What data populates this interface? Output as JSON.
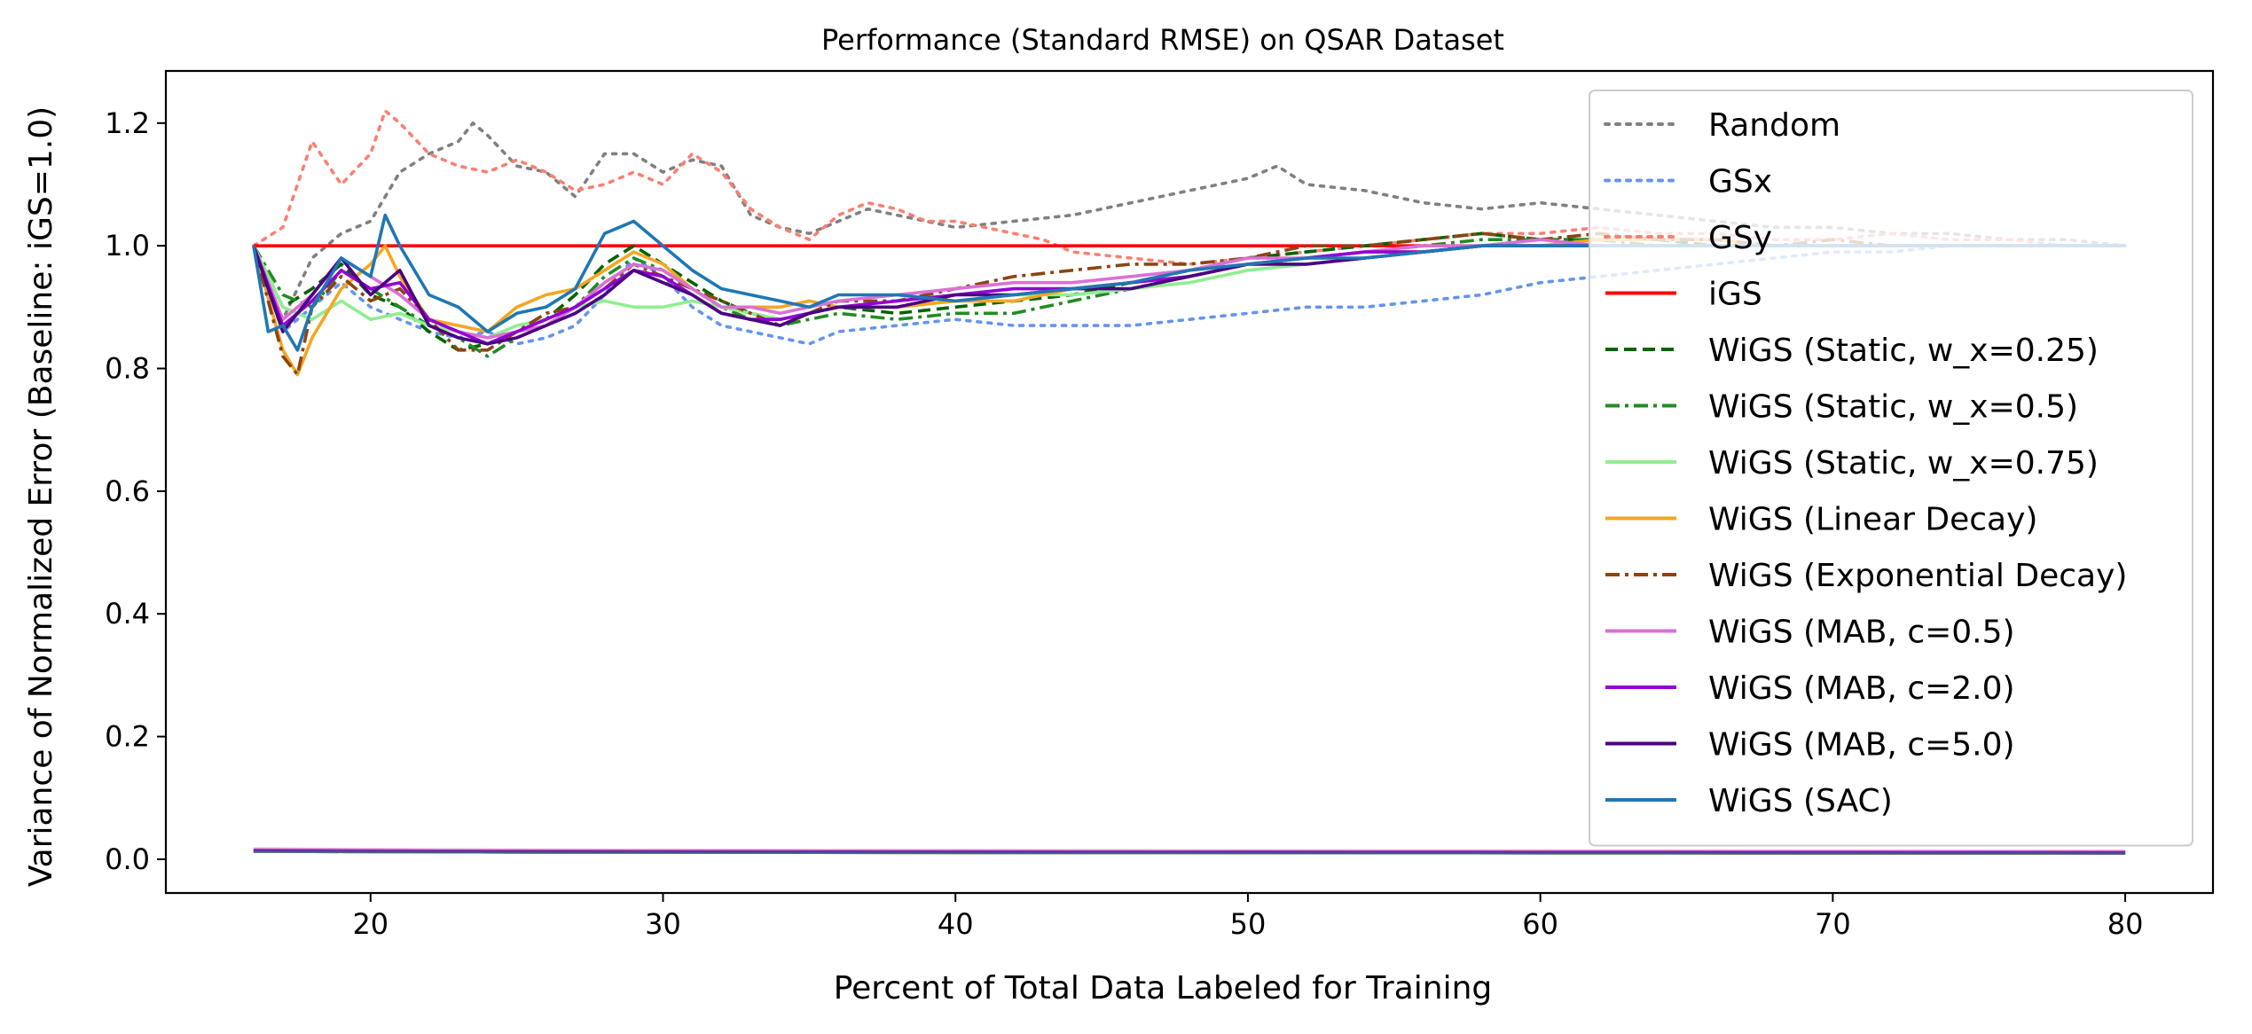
{
  "chart_data": {
    "type": "line",
    "title": "Performance (Standard RMSE) on QSAR Dataset",
    "xlabel": "Percent of Total Data Labeled for Training",
    "ylabel": "Variance of Normalized Error (Baseline: iGS=1.0)",
    "xlim": [
      13,
      83
    ],
    "ylim": [
      -0.055,
      1.285
    ],
    "xticks": [
      20,
      30,
      40,
      50,
      60,
      70,
      80
    ],
    "yticks": [
      0.0,
      0.2,
      0.4,
      0.6,
      0.8,
      1.0,
      1.2
    ],
    "xtick_labels": [
      "20",
      "30",
      "40",
      "50",
      "60",
      "70",
      "80"
    ],
    "ytick_labels": [
      "0.0",
      "0.2",
      "0.4",
      "0.6",
      "0.8",
      "1.0",
      "1.2"
    ],
    "legend_position": "upper right",
    "grid": false,
    "series": [
      {
        "name": "Random",
        "color": "#808080",
        "dash": "dotted",
        "x": [
          16,
          17,
          18,
          19,
          20,
          21,
          22,
          23,
          23.5,
          24,
          25,
          26,
          27,
          28,
          29,
          30,
          31,
          32,
          33,
          34,
          35,
          36,
          37,
          38,
          39,
          40,
          42,
          44,
          46,
          48,
          50,
          51,
          52,
          54,
          56,
          58,
          60,
          62,
          64,
          66,
          68,
          70,
          72,
          74,
          76,
          78,
          80
        ],
        "y": [
          1.0,
          0.88,
          0.98,
          1.02,
          1.04,
          1.12,
          1.15,
          1.17,
          1.2,
          1.18,
          1.13,
          1.12,
          1.08,
          1.15,
          1.15,
          1.12,
          1.14,
          1.13,
          1.05,
          1.03,
          1.02,
          1.04,
          1.06,
          1.05,
          1.04,
          1.03,
          1.04,
          1.05,
          1.07,
          1.09,
          1.11,
          1.13,
          1.1,
          1.09,
          1.07,
          1.06,
          1.07,
          1.06,
          1.05,
          1.04,
          1.03,
          1.03,
          1.02,
          1.02,
          1.01,
          1.01,
          1.0
        ],
        "variance": 0.012
      },
      {
        "name": "GSx",
        "color": "#6495ed",
        "dash": "dotted",
        "x": [
          16,
          17,
          18,
          19,
          20,
          21,
          22,
          23,
          24,
          25,
          26,
          27,
          28,
          29,
          30,
          31,
          32,
          33,
          34,
          35,
          36,
          38,
          40,
          42,
          44,
          46,
          48,
          50,
          52,
          54,
          56,
          58,
          60,
          62,
          64,
          66,
          68,
          70,
          72,
          74,
          76,
          78,
          80
        ],
        "y": [
          1.0,
          0.86,
          0.9,
          0.94,
          0.9,
          0.88,
          0.86,
          0.85,
          0.86,
          0.84,
          0.85,
          0.87,
          0.92,
          0.98,
          0.95,
          0.9,
          0.87,
          0.86,
          0.85,
          0.84,
          0.86,
          0.87,
          0.88,
          0.87,
          0.87,
          0.87,
          0.88,
          0.89,
          0.9,
          0.9,
          0.91,
          0.92,
          0.94,
          0.95,
          0.96,
          0.97,
          0.98,
          0.99,
          0.99,
          1.0,
          1.0,
          1.0,
          1.0
        ],
        "variance": 0.013
      },
      {
        "name": "GSy",
        "color": "#fa8072",
        "dash": "dotted",
        "x": [
          16,
          17,
          18,
          19,
          20,
          20.5,
          21,
          22,
          23,
          24,
          25,
          26,
          27,
          28,
          29,
          30,
          31,
          32,
          33,
          34,
          35,
          36,
          37,
          38,
          39,
          40,
          41,
          42,
          43,
          44,
          46,
          48,
          50,
          52,
          54,
          56,
          58,
          60,
          62,
          64,
          66,
          68,
          70,
          72,
          74,
          76,
          78,
          80
        ],
        "y": [
          1.0,
          1.03,
          1.17,
          1.1,
          1.15,
          1.22,
          1.2,
          1.15,
          1.13,
          1.12,
          1.14,
          1.12,
          1.09,
          1.1,
          1.12,
          1.1,
          1.15,
          1.12,
          1.06,
          1.03,
          1.01,
          1.05,
          1.07,
          1.06,
          1.04,
          1.04,
          1.03,
          1.02,
          1.01,
          0.99,
          0.98,
          0.97,
          0.98,
          0.99,
          1.0,
          1.01,
          1.02,
          1.02,
          1.03,
          1.02,
          1.02,
          1.01,
          1.01,
          1.02,
          1.01,
          1.01,
          1.0,
          1.0
        ],
        "variance": 0.014
      },
      {
        "name": "iGS",
        "color": "#ff0000",
        "dash": "solid",
        "x": [
          16,
          80
        ],
        "y": [
          1.0,
          1.0
        ],
        "variance": 0.012
      },
      {
        "name": "WiGS (Static, w_x=0.25)",
        "color": "#006400",
        "dash": "dashed",
        "x": [
          16,
          17,
          18,
          19,
          20,
          21,
          22,
          23,
          24,
          25,
          26,
          27,
          28,
          29,
          30,
          31,
          32,
          33,
          34,
          35,
          36,
          38,
          40,
          42,
          44,
          46,
          48,
          50,
          52,
          54,
          56,
          58,
          60,
          62,
          64,
          66,
          68,
          70,
          72,
          74,
          76,
          78,
          80
        ],
        "y": [
          1.0,
          0.9,
          0.93,
          0.97,
          0.92,
          0.9,
          0.86,
          0.83,
          0.84,
          0.86,
          0.88,
          0.92,
          0.97,
          1.0,
          0.97,
          0.94,
          0.91,
          0.89,
          0.88,
          0.89,
          0.9,
          0.89,
          0.9,
          0.91,
          0.92,
          0.94,
          0.96,
          0.98,
          0.99,
          1.0,
          1.01,
          1.02,
          1.01,
          1.01,
          1.01,
          1.0,
          1.0,
          1.0,
          1.0,
          1.0,
          1.0,
          1.0,
          1.0
        ],
        "variance": 0.011
      },
      {
        "name": "WiGS (Static, w_x=0.5)",
        "color": "#228b22",
        "dash": "dashdot",
        "x": [
          16,
          17,
          18,
          19,
          20,
          21,
          22,
          23,
          24,
          25,
          26,
          27,
          28,
          29,
          30,
          31,
          32,
          33,
          34,
          35,
          36,
          38,
          40,
          42,
          44,
          46,
          48,
          50,
          52,
          54,
          56,
          58,
          60,
          62,
          64,
          66,
          68,
          70,
          72,
          74,
          76,
          78,
          80
        ],
        "y": [
          1.0,
          0.92,
          0.9,
          0.96,
          0.93,
          0.9,
          0.87,
          0.85,
          0.82,
          0.85,
          0.87,
          0.9,
          0.95,
          0.98,
          0.96,
          0.93,
          0.9,
          0.88,
          0.87,
          0.88,
          0.89,
          0.88,
          0.89,
          0.89,
          0.91,
          0.93,
          0.95,
          0.97,
          0.98,
          0.99,
          1.0,
          1.01,
          1.01,
          1.01,
          1.0,
          1.0,
          1.0,
          1.0,
          1.0,
          1.0,
          1.0,
          1.0,
          1.0
        ],
        "variance": 0.011
      },
      {
        "name": "WiGS (Static, w_x=0.75)",
        "color": "#90ee90",
        "dash": "solid",
        "x": [
          16,
          17,
          18,
          19,
          20,
          21,
          22,
          23,
          24,
          25,
          26,
          27,
          28,
          29,
          30,
          31,
          32,
          33,
          34,
          35,
          36,
          38,
          40,
          42,
          44,
          46,
          48,
          50,
          52,
          54,
          56,
          58,
          60,
          62,
          64,
          66,
          68,
          70,
          72,
          74,
          76,
          78,
          80
        ],
        "y": [
          1.0,
          0.9,
          0.88,
          0.91,
          0.88,
          0.89,
          0.87,
          0.86,
          0.85,
          0.87,
          0.88,
          0.9,
          0.91,
          0.9,
          0.9,
          0.91,
          0.9,
          0.89,
          0.88,
          0.89,
          0.9,
          0.9,
          0.91,
          0.92,
          0.92,
          0.93,
          0.94,
          0.96,
          0.97,
          0.98,
          0.99,
          1.0,
          1.0,
          1.0,
          1.0,
          1.0,
          1.0,
          1.0,
          1.0,
          1.0,
          1.0,
          1.0,
          1.0
        ],
        "variance": 0.011
      },
      {
        "name": "WiGS (Linear Decay)",
        "color": "#f5a623",
        "dash": "solid",
        "x": [
          16,
          17,
          17.5,
          18,
          19,
          20,
          20.5,
          21,
          22,
          23,
          24,
          25,
          26,
          27,
          28,
          29,
          30,
          31,
          32,
          33,
          34,
          35,
          36,
          38,
          40,
          42,
          44,
          46,
          48,
          50,
          52,
          54,
          56,
          58,
          60,
          62,
          64,
          66,
          68,
          70,
          72,
          74,
          76,
          78,
          80
        ],
        "y": [
          1.0,
          0.83,
          0.79,
          0.85,
          0.93,
          0.97,
          1.0,
          0.95,
          0.88,
          0.87,
          0.86,
          0.9,
          0.92,
          0.93,
          0.96,
          0.99,
          0.97,
          0.93,
          0.9,
          0.9,
          0.9,
          0.91,
          0.9,
          0.9,
          0.91,
          0.91,
          0.93,
          0.94,
          0.95,
          0.97,
          0.98,
          0.99,
          0.99,
          1.0,
          1.0,
          1.01,
          1.01,
          1.01,
          1.0,
          1.0,
          1.0,
          1.0,
          1.0,
          1.0,
          1.0
        ],
        "variance": 0.011
      },
      {
        "name": "WiGS (Exponential Decay)",
        "color": "#8b4513",
        "dash": "dashdot",
        "x": [
          16,
          17,
          17.5,
          18,
          19,
          20,
          21,
          22,
          23,
          24,
          25,
          26,
          27,
          28,
          29,
          30,
          31,
          32,
          33,
          34,
          35,
          36,
          38,
          40,
          42,
          44,
          46,
          48,
          50,
          52,
          54,
          56,
          58,
          60,
          62,
          64,
          66,
          68,
          70,
          72,
          74,
          76,
          78,
          80
        ],
        "y": [
          1.0,
          0.82,
          0.79,
          0.9,
          0.95,
          0.91,
          0.93,
          0.88,
          0.83,
          0.83,
          0.86,
          0.89,
          0.9,
          0.93,
          0.97,
          0.95,
          0.93,
          0.91,
          0.89,
          0.87,
          0.89,
          0.91,
          0.91,
          0.93,
          0.95,
          0.96,
          0.97,
          0.97,
          0.98,
          1.0,
          1.0,
          1.01,
          1.02,
          1.01,
          1.02,
          1.01,
          1.01,
          1.0,
          1.01,
          1.0,
          1.0,
          1.0,
          1.0,
          1.0
        ],
        "variance": 0.011
      },
      {
        "name": "WiGS (MAB, c=0.5)",
        "color": "#da70d6",
        "dash": "solid",
        "x": [
          16,
          17,
          18,
          19,
          20,
          21,
          22,
          23,
          24,
          25,
          26,
          27,
          28,
          29,
          30,
          31,
          32,
          33,
          34,
          35,
          36,
          38,
          40,
          42,
          44,
          46,
          48,
          50,
          52,
          54,
          56,
          58,
          60,
          62,
          64,
          66,
          68,
          70,
          72,
          74,
          76,
          78,
          80
        ],
        "y": [
          1.0,
          0.88,
          0.92,
          0.98,
          0.95,
          0.92,
          0.88,
          0.86,
          0.85,
          0.86,
          0.87,
          0.9,
          0.94,
          0.97,
          0.96,
          0.93,
          0.9,
          0.9,
          0.89,
          0.9,
          0.91,
          0.92,
          0.93,
          0.94,
          0.94,
          0.95,
          0.96,
          0.98,
          0.98,
          0.99,
          1.0,
          1.0,
          1.01,
          1.0,
          1.0,
          1.0,
          1.0,
          1.0,
          1.0,
          1.0,
          1.0,
          1.0,
          1.0
        ],
        "variance": 0.015
      },
      {
        "name": "WiGS (MAB, c=2.0)",
        "color": "#9400d3",
        "dash": "solid",
        "x": [
          16,
          17,
          18,
          19,
          20,
          21,
          22,
          23,
          24,
          25,
          26,
          27,
          28,
          29,
          30,
          31,
          32,
          33,
          34,
          35,
          36,
          38,
          40,
          42,
          44,
          46,
          48,
          50,
          52,
          54,
          56,
          58,
          60,
          62,
          64,
          66,
          68,
          70,
          72,
          74,
          76,
          78,
          80
        ],
        "y": [
          1.0,
          0.87,
          0.91,
          0.96,
          0.93,
          0.94,
          0.88,
          0.86,
          0.84,
          0.86,
          0.88,
          0.9,
          0.93,
          0.96,
          0.95,
          0.92,
          0.89,
          0.88,
          0.88,
          0.89,
          0.9,
          0.91,
          0.92,
          0.93,
          0.93,
          0.94,
          0.95,
          0.97,
          0.98,
          0.99,
          0.99,
          1.0,
          1.0,
          1.0,
          1.0,
          1.0,
          1.0,
          1.0,
          1.0,
          1.0,
          1.0,
          1.0,
          1.0
        ],
        "variance": 0.013
      },
      {
        "name": "WiGS (MAB, c=5.0)",
        "color": "#4b0082",
        "dash": "solid",
        "x": [
          16,
          17,
          18,
          19,
          20,
          21,
          22,
          23,
          24,
          25,
          26,
          27,
          28,
          29,
          30,
          31,
          32,
          33,
          34,
          35,
          36,
          38,
          40,
          42,
          44,
          46,
          48,
          50,
          52,
          54,
          56,
          58,
          60,
          62,
          64,
          66,
          68,
          70,
          72,
          74,
          76,
          78,
          80
        ],
        "y": [
          1.0,
          0.86,
          0.92,
          0.98,
          0.92,
          0.96,
          0.87,
          0.85,
          0.84,
          0.85,
          0.87,
          0.89,
          0.92,
          0.96,
          0.94,
          0.92,
          0.89,
          0.88,
          0.87,
          0.89,
          0.9,
          0.9,
          0.92,
          0.92,
          0.93,
          0.93,
          0.95,
          0.97,
          0.97,
          0.98,
          0.99,
          1.0,
          1.0,
          1.0,
          1.0,
          1.0,
          1.0,
          1.0,
          1.0,
          1.0,
          1.0,
          1.0,
          1.0
        ],
        "variance": 0.012
      },
      {
        "name": "WiGS (SAC)",
        "color": "#1f77b4",
        "dash": "solid",
        "x": [
          16,
          16.5,
          17,
          17.5,
          18,
          19,
          20,
          20.5,
          21,
          22,
          23,
          24,
          25,
          26,
          27,
          28,
          29,
          30,
          31,
          32,
          33,
          34,
          35,
          36,
          38,
          40,
          42,
          44,
          46,
          48,
          50,
          52,
          54,
          56,
          58,
          60,
          62,
          64,
          66,
          68,
          70,
          72,
          74,
          76,
          78,
          80
        ],
        "y": [
          1.0,
          0.86,
          0.87,
          0.83,
          0.9,
          0.98,
          0.95,
          1.05,
          1.0,
          0.92,
          0.9,
          0.86,
          0.89,
          0.9,
          0.93,
          1.02,
          1.04,
          1.0,
          0.96,
          0.93,
          0.92,
          0.91,
          0.9,
          0.92,
          0.92,
          0.91,
          0.92,
          0.93,
          0.94,
          0.96,
          0.97,
          0.98,
          0.98,
          0.99,
          1.0,
          1.0,
          1.0,
          1.0,
          1.0,
          1.0,
          1.0,
          1.0,
          1.0,
          1.0,
          1.0,
          1.0
        ],
        "variance": 0.011
      }
    ]
  }
}
